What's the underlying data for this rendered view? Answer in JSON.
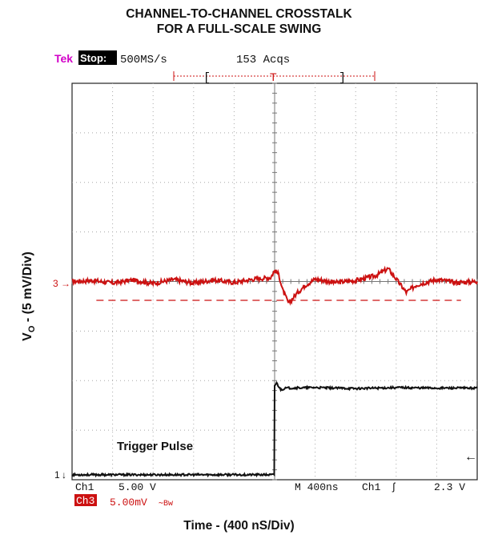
{
  "title_line1": "CHANNEL-TO-CHANNEL CROSSTALK",
  "title_line2": "FOR A FULL-SCALE SWING",
  "scope_header": {
    "brand": "Tek",
    "status": "Stop:",
    "sample_rate": "500MS/s",
    "acquisitions": "153 Acqs",
    "trigger_marker": "T"
  },
  "y_axis": {
    "prefix": "V",
    "sub": "O",
    "rest": " -     (5 mV/Div)"
  },
  "x_axis_label": "Time - (400 nS/Div)",
  "readouts": {
    "ch1_name": "Ch1",
    "ch1_scale": "5.00 V",
    "ch3_name": "Ch3",
    "ch3_scale": "5.00mV",
    "ch3_bw": "∼Bw",
    "timebase": "M 400ns",
    "trig_src": "Ch1",
    "trig_slope": "ʃ",
    "trig_level": "2.3 V",
    "ch3_marker": "3",
    "ch1_marker": "1",
    "annotation": "Trigger Pulse"
  },
  "colors": {
    "ch3": "#cc1111",
    "ch1": "#111111",
    "tek": "#d200c8",
    "grid": "#a8a8a8"
  },
  "chart_data": {
    "type": "line",
    "xlim": [
      0,
      10
    ],
    "ylim": [
      0,
      8
    ],
    "x_unit": "divisions (400 ns/div)",
    "y_unit": "divisions (5 mV/div for Ch3)",
    "grid": true,
    "series": [
      {
        "name": "Ch3",
        "x": [
          0,
          0.5,
          1,
          1.5,
          2,
          2.5,
          3,
          3.5,
          4,
          4.5,
          4.9,
          5.0,
          5.1,
          5.2,
          5.35,
          5.5,
          5.75,
          6.0,
          6.5,
          7.0,
          7.5,
          7.8,
          8.0,
          8.25,
          8.5,
          9.0,
          9.5,
          10
        ],
        "values": [
          4.0,
          4.02,
          3.97,
          4.03,
          3.96,
          4.04,
          3.97,
          4.03,
          3.98,
          4.05,
          4.08,
          4.22,
          4.15,
          3.82,
          3.55,
          3.72,
          3.92,
          4.05,
          3.98,
          4.02,
          4.12,
          4.26,
          4.05,
          3.78,
          3.93,
          4.04,
          3.98,
          4.0
        ]
      },
      {
        "name": "Ch1",
        "x": [
          0,
          4.99,
          5.0,
          5.05,
          5.15,
          5.3,
          6,
          7,
          8,
          9,
          10
        ],
        "values": [
          0.1,
          0.1,
          1.9,
          1.95,
          1.82,
          1.85,
          1.86,
          1.84,
          1.86,
          1.85,
          1.85
        ]
      }
    ],
    "reference_line": {
      "y": 3.62,
      "x_start": 0.6,
      "x_end": 9.6
    },
    "trigger_time": 5.0
  }
}
